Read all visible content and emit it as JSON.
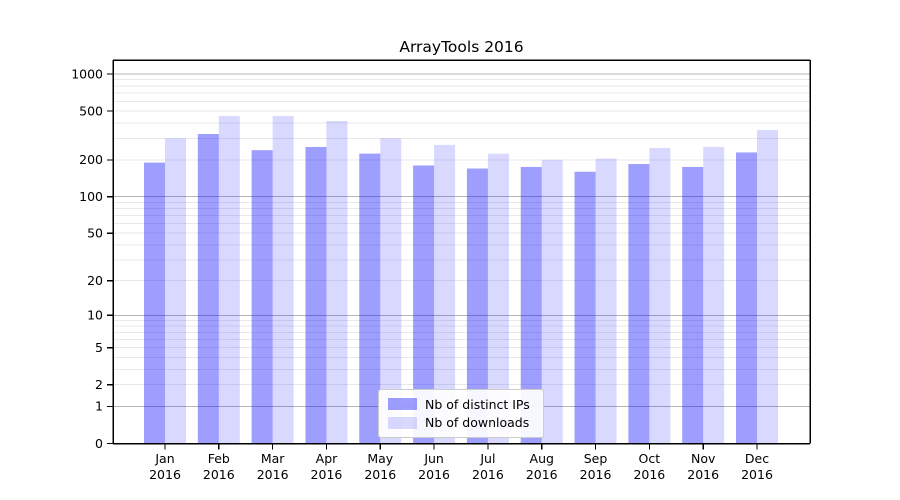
{
  "title": "ArrayTools 2016",
  "chart_data": {
    "type": "bar",
    "title": "ArrayTools 2016",
    "categories": [
      "Jan 2016",
      "Feb 2016",
      "Mar 2016",
      "Apr 2016",
      "May 2016",
      "Jun 2016",
      "Jul 2016",
      "Aug 2016",
      "Sep 2016",
      "Oct 2016",
      "Nov 2016",
      "Dec 2016"
    ],
    "series": [
      {
        "name": "Nb of distinct IPs",
        "color": "rgba(0,0,255,0.38)",
        "values": [
          190,
          325,
          240,
          255,
          225,
          180,
          170,
          175,
          160,
          185,
          175,
          230
        ]
      },
      {
        "name": "Nb of downloads",
        "color": "rgba(0,0,255,0.15)",
        "values": [
          300,
          455,
          455,
          415,
          300,
          265,
          225,
          200,
          205,
          250,
          255,
          350
        ]
      }
    ],
    "xlabel": "",
    "ylabel": "",
    "yscale": "log10(1+value) (symlog-like, 0 at baseline)",
    "yticks": [
      0,
      1,
      2,
      5,
      10,
      20,
      50,
      100,
      200,
      500,
      1000
    ],
    "ylim": [
      0,
      1300
    ],
    "grid": "major lines at powers of 10, faint minor lines at 2-9 per decade",
    "legend_position": "lower center",
    "style": {
      "grid_major": "#b6b6b6",
      "grid_minor": "#e9e9e9",
      "spine": "#000000",
      "tick_label_color": "#000000"
    }
  }
}
